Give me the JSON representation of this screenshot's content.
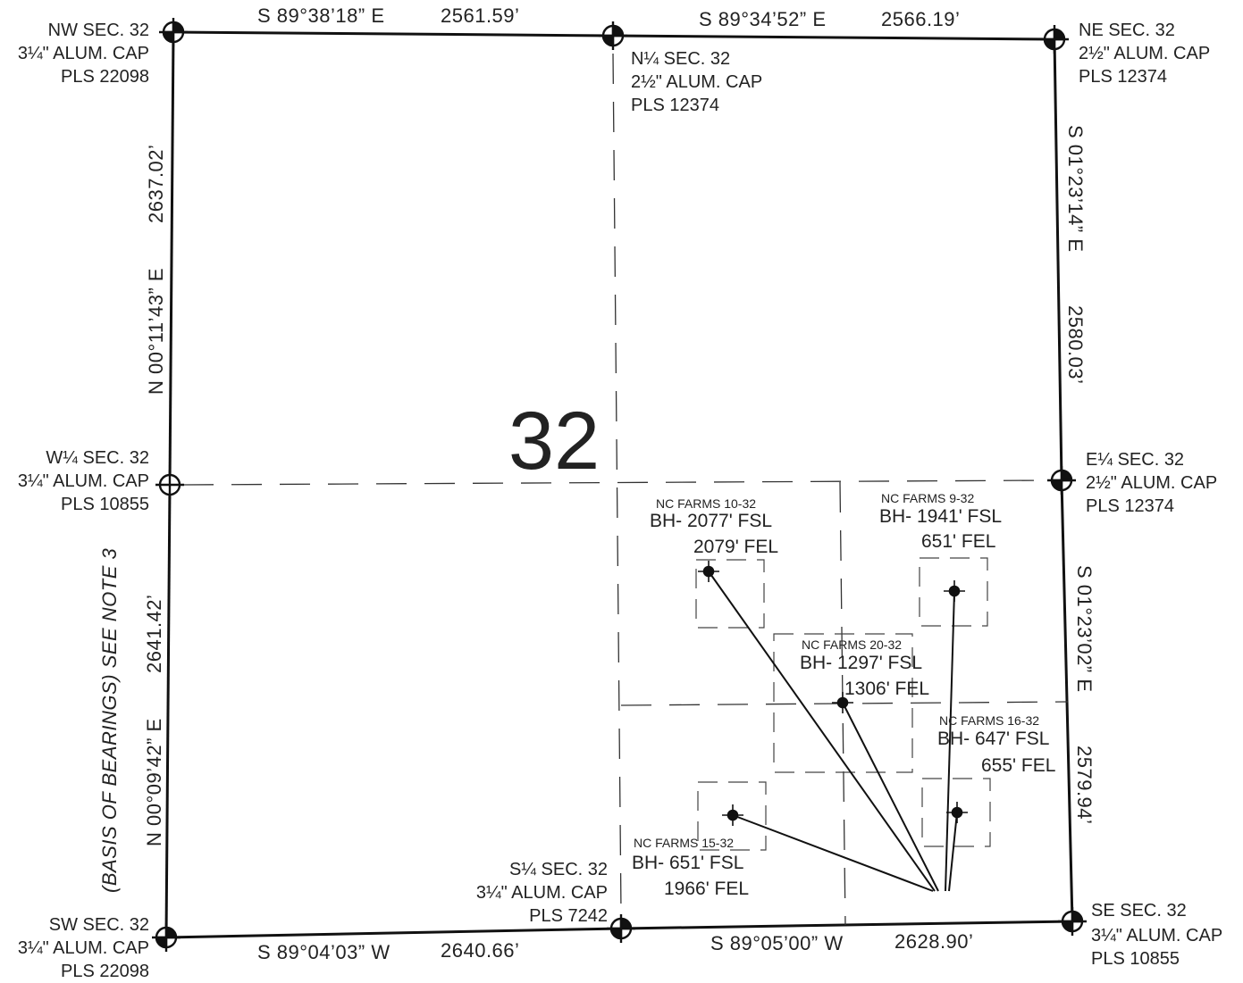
{
  "section_number": "32",
  "corners": {
    "nw": {
      "name": "NW SEC. 32",
      "cap": "3¼\" ALUM. CAP",
      "pls": "PLS 22098"
    },
    "n_quarter": {
      "name": "N¼  SEC. 32",
      "cap": "2½\" ALUM. CAP",
      "pls": "PLS 12374"
    },
    "ne": {
      "name": "NE SEC. 32",
      "cap": "2½\" ALUM. CAP",
      "pls": "PLS 12374"
    },
    "w_quarter": {
      "name": "W¼ SEC. 32",
      "cap": "3¼\" ALUM. CAP",
      "pls": "PLS 10855"
    },
    "e_quarter": {
      "name": "E¼ SEC. 32",
      "cap": "2½\" ALUM. CAP",
      "pls": "PLS 12374"
    },
    "sw": {
      "name": "SW SEC. 32",
      "cap": "3¼\" ALUM. CAP",
      "pls": "PLS 22098"
    },
    "s_quarter": {
      "name": "S¼  SEC. 32",
      "cap": "3¼\" ALUM. CAP",
      "pls": "PLS 7242"
    },
    "se": {
      "name": "SE SEC. 32",
      "cap": "3¼\" ALUM. CAP",
      "pls": "PLS 10855"
    }
  },
  "boundaries": {
    "north_west": {
      "bearing": "S 89°38’18” E",
      "distance": "2561.59’"
    },
    "north_east": {
      "bearing": "S 89°34’52” E",
      "distance": "2566.19’"
    },
    "east_north": {
      "bearing": "S 01°23’14” E",
      "distance": "2580.03’"
    },
    "east_south": {
      "bearing": "S 01°23’02” E",
      "distance": "2579.94’"
    },
    "south_west": {
      "bearing": "S 89°04’03” W",
      "distance": "2640.66’"
    },
    "south_east": {
      "bearing": "S 89°05’00” W",
      "distance": "2628.90’"
    },
    "west_north": {
      "bearing": "N 00°11’43” E",
      "distance": "2637.02’"
    },
    "west_south": {
      "bearing": "N 00°09’42” E",
      "distance": "2641.42’",
      "note": "(BASIS OF BEARINGS) SEE NOTE 3"
    }
  },
  "wells": [
    {
      "name": "NC FARMS 10-32",
      "fsl": "BH- 2077' FSL",
      "fel": "2079' FEL"
    },
    {
      "name": "NC FARMS 9-32",
      "fsl": "BH- 1941' FSL",
      "fel": "651' FEL"
    },
    {
      "name": "NC FARMS 20-32",
      "fsl": "BH- 1297' FSL",
      "fel": "1306' FEL"
    },
    {
      "name": "NC FARMS 16-32",
      "fsl": "BH- 647' FSL",
      "fel": "655' FEL"
    },
    {
      "name": "NC FARMS 15-32",
      "fsl": "BH- 651' FSL",
      "fel": "1966' FEL"
    }
  ]
}
